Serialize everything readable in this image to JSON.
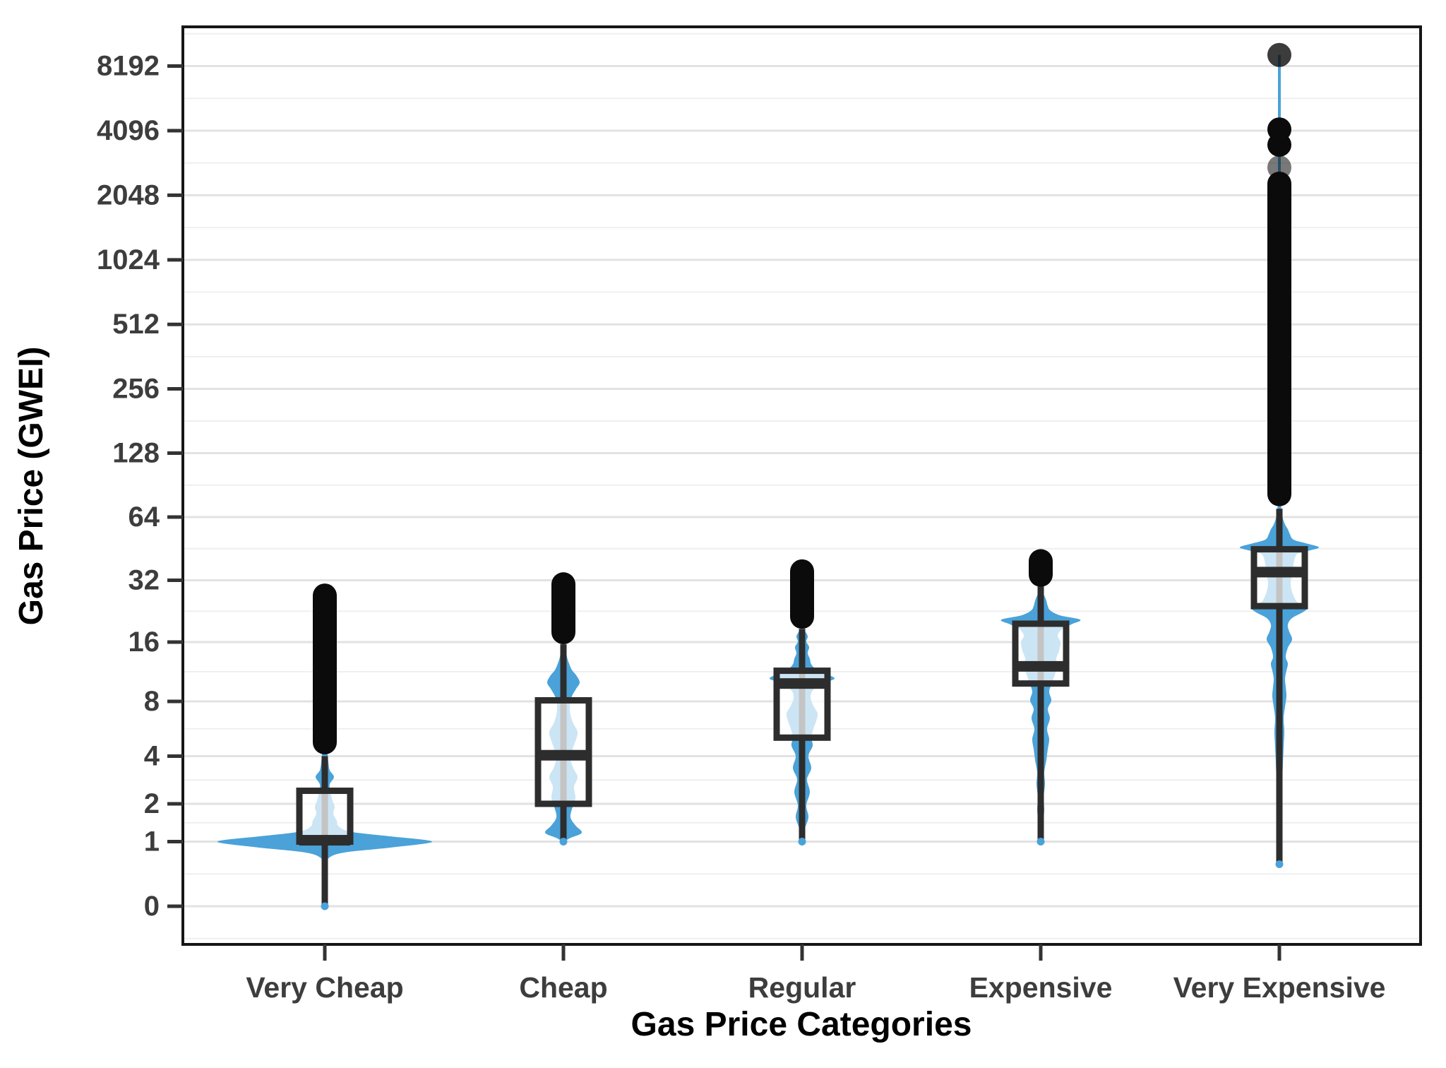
{
  "chart_data": {
    "type": "violin-box",
    "title": "",
    "xlabel": "Gas Price Categories",
    "ylabel": "Gas Price (GWEI)",
    "y_scale": "pseudo-log base 2 (log2(value+1))",
    "y_ticks": [
      8192,
      4096,
      2048,
      1024,
      512,
      256,
      128,
      64,
      32,
      16,
      8,
      4,
      2,
      1,
      0
    ],
    "grid": true,
    "legend": "none",
    "categories": [
      "Very Cheap",
      "Cheap",
      "Regular",
      "Expensive",
      "Very Expensive"
    ],
    "series": [
      {
        "name": "Very Cheap",
        "box": {
          "q1": 1.0,
          "median": 1.03,
          "q3": 2.45,
          "whisker_low": 0,
          "whisker_high": 4.0
        },
        "outlier_range": [
          4.8,
          27
        ],
        "outlier_dots": [],
        "spike_to": null,
        "violin_profile": [
          [
            0,
            1
          ],
          [
            0.3,
            2
          ],
          [
            0.55,
            3
          ],
          [
            0.68,
            6
          ],
          [
            0.78,
            28
          ],
          [
            0.88,
            95
          ],
          [
            1.0,
            152
          ],
          [
            1.12,
            90
          ],
          [
            1.22,
            38
          ],
          [
            1.35,
            20
          ],
          [
            1.5,
            17
          ],
          [
            1.7,
            12
          ],
          [
            1.9,
            14
          ],
          [
            2.1,
            11
          ],
          [
            2.4,
            8
          ],
          [
            2.7,
            7
          ],
          [
            3.0,
            13
          ],
          [
            3.3,
            7
          ],
          [
            3.7,
            5
          ],
          [
            4.1,
            4
          ],
          [
            4.6,
            2
          ]
        ]
      },
      {
        "name": "Cheap",
        "box": {
          "q1": 2.0,
          "median": 4.05,
          "q3": 8.1,
          "whisker_low": 1.0,
          "whisker_high": 15.6
        },
        "outlier_range": [
          17.9,
          30.6
        ],
        "outlier_dots": [],
        "spike_to": null,
        "violin_profile": [
          [
            1,
            1
          ],
          [
            1.08,
            10
          ],
          [
            1.2,
            26
          ],
          [
            1.38,
            17
          ],
          [
            1.6,
            10
          ],
          [
            1.9,
            13
          ],
          [
            2.2,
            17
          ],
          [
            2.6,
            15
          ],
          [
            3.0,
            20
          ],
          [
            3.4,
            14
          ],
          [
            3.9,
            10
          ],
          [
            4.4,
            13
          ],
          [
            5.0,
            18
          ],
          [
            5.5,
            20
          ],
          [
            6.1,
            14
          ],
          [
            6.8,
            10
          ],
          [
            7.6,
            9
          ],
          [
            8.5,
            12
          ],
          [
            9.3,
            18
          ],
          [
            10.0,
            23
          ],
          [
            10.8,
            19
          ],
          [
            11.6,
            12
          ],
          [
            12.5,
            8
          ],
          [
            13.5,
            5
          ],
          [
            14.5,
            4
          ],
          [
            15.5,
            2
          ]
        ]
      },
      {
        "name": "Regular",
        "box": {
          "q1": 5.1,
          "median": 9.9,
          "q3": 11.5,
          "whisker_low": 1.0,
          "whisker_high": 18.6
        },
        "outlier_range": [
          21.3,
          35.3
        ],
        "outlier_dots": [],
        "spike_to": null,
        "violin_profile": [
          [
            1,
            1
          ],
          [
            1.3,
            4
          ],
          [
            1.6,
            9
          ],
          [
            1.95,
            6
          ],
          [
            2.4,
            11
          ],
          [
            2.9,
            7
          ],
          [
            3.4,
            13
          ],
          [
            4.0,
            9
          ],
          [
            4.6,
            15
          ],
          [
            5.1,
            13
          ],
          [
            5.7,
            16
          ],
          [
            6.3,
            20
          ],
          [
            6.9,
            22
          ],
          [
            7.6,
            16
          ],
          [
            8.4,
            12
          ],
          [
            9.2,
            16
          ],
          [
            10.0,
            32
          ],
          [
            10.5,
            46
          ],
          [
            11.1,
            34
          ],
          [
            11.7,
            20
          ],
          [
            12.4,
            13
          ],
          [
            13.2,
            11
          ],
          [
            14.1,
            8
          ],
          [
            15.1,
            10
          ],
          [
            16.1,
            6
          ],
          [
            17.1,
            8
          ],
          [
            18.2,
            3
          ]
        ]
      },
      {
        "name": "Expensive",
        "box": {
          "q1": 9.9,
          "median": 12.1,
          "q3": 19.7,
          "whisker_low": 1.0,
          "whisker_high": 29.9
        },
        "outlier_range": [
          34.0,
          39.5
        ],
        "outlier_dots": [],
        "spike_to": null,
        "violin_profile": [
          [
            1,
            1
          ],
          [
            1.4,
            3
          ],
          [
            1.8,
            5
          ],
          [
            2.2,
            4
          ],
          [
            2.7,
            6
          ],
          [
            3.2,
            5
          ],
          [
            3.8,
            8
          ],
          [
            4.4,
            10
          ],
          [
            5.0,
            12
          ],
          [
            5.7,
            9
          ],
          [
            6.5,
            13
          ],
          [
            7.3,
            10
          ],
          [
            8.1,
            15
          ],
          [
            9.0,
            12
          ],
          [
            10.0,
            16
          ],
          [
            11.0,
            20
          ],
          [
            12.0,
            24
          ],
          [
            13.2,
            22
          ],
          [
            14.5,
            26
          ],
          [
            16.0,
            28
          ],
          [
            17.2,
            24
          ],
          [
            18.5,
            30
          ],
          [
            19.6,
            44
          ],
          [
            20.6,
            56
          ],
          [
            21.6,
            28
          ],
          [
            22.8,
            14
          ],
          [
            24.0,
            10
          ],
          [
            25.5,
            8
          ],
          [
            27.0,
            5
          ],
          [
            28.2,
            2
          ]
        ]
      },
      {
        "name": "Very Expensive",
        "box": {
          "q1": 24,
          "median": 35,
          "q3": 45,
          "whisker_low": 0.57,
          "whisker_high": 70
        },
        "outlier_range": [
          82,
          2320
        ],
        "outlier_dots": [
          [
            2760,
            0.55
          ],
          [
            3520,
            1
          ],
          [
            4150,
            1
          ],
          [
            9230,
            0.8
          ]
        ],
        "spike_to": 9230,
        "violin_profile": [
          [
            0.57,
            1
          ],
          [
            0.9,
            2
          ],
          [
            1.4,
            3
          ],
          [
            2.0,
            3
          ],
          [
            2.8,
            4
          ],
          [
            3.6,
            5
          ],
          [
            4.5,
            6
          ],
          [
            5.5,
            7
          ],
          [
            6.5,
            6
          ],
          [
            7.5,
            8
          ],
          [
            8.5,
            10
          ],
          [
            9.5,
            9
          ],
          [
            10.5,
            8
          ],
          [
            11.5,
            10
          ],
          [
            12.5,
            12
          ],
          [
            13.5,
            9
          ],
          [
            15,
            12
          ],
          [
            16.5,
            18
          ],
          [
            18,
            14
          ],
          [
            19.5,
            12
          ],
          [
            21,
            18
          ],
          [
            22.5,
            34
          ],
          [
            23.8,
            40
          ],
          [
            25,
            26
          ],
          [
            27,
            20
          ],
          [
            29,
            17
          ],
          [
            31,
            16
          ],
          [
            33,
            17
          ],
          [
            35,
            18
          ],
          [
            38,
            20
          ],
          [
            41,
            22
          ],
          [
            43,
            27
          ],
          [
            44.5,
            44
          ],
          [
            46,
            56
          ],
          [
            48,
            38
          ],
          [
            50,
            20
          ],
          [
            53,
            15
          ],
          [
            56,
            12
          ],
          [
            59,
            8
          ],
          [
            63,
            5
          ],
          [
            68,
            3
          ],
          [
            73,
            2
          ]
        ]
      }
    ],
    "colors": {
      "violin": "#4AA2D9",
      "violin_in_box": "#CCE5F4",
      "box_fill_overlay": "rgba(255,255,255,0.72)",
      "line_dark": "#2D2D2D",
      "outlier": "#0B0B0B",
      "grid_major": "#E2E2E2",
      "grid_minor": "#EFEFEF",
      "panel_border": "#161616",
      "tick_mark": "#333333",
      "tick_text": "#3D3D3D",
      "title_text": "#000000",
      "background": "#FFFFFF"
    }
  }
}
